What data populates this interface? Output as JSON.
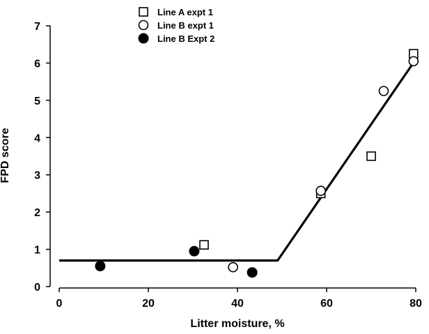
{
  "chart_data": {
    "type": "scatter",
    "xlabel": "Litter moisture, %",
    "ylabel": "FPD score",
    "xlim": [
      0,
      80
    ],
    "ylim": [
      0,
      7
    ],
    "xticks": [
      0,
      20,
      40,
      60,
      80
    ],
    "yticks": [
      0,
      1,
      2,
      3,
      4,
      5,
      6,
      7
    ],
    "xtick_labels": [
      "0",
      "20",
      "40",
      "60",
      "80"
    ],
    "ytick_labels": [
      "0",
      "1",
      "2",
      "3",
      "4",
      "5",
      "6",
      "7"
    ],
    "grid": false,
    "legend_position": "top-left",
    "series": [
      {
        "name": "Line A expt 1",
        "marker": "open-square",
        "color": "#000000",
        "points": [
          {
            "x": 32.5,
            "y": 1.12
          },
          {
            "x": 58.7,
            "y": 2.5
          },
          {
            "x": 70.0,
            "y": 3.5
          },
          {
            "x": 79.5,
            "y": 6.25
          }
        ]
      },
      {
        "name": "Line B expt 1",
        "marker": "open-circle",
        "color": "#000000",
        "points": [
          {
            "x": 39.0,
            "y": 0.52
          },
          {
            "x": 58.7,
            "y": 2.57
          },
          {
            "x": 72.8,
            "y": 5.25
          },
          {
            "x": 79.5,
            "y": 6.05
          }
        ]
      },
      {
        "name": "Line B Expt 2",
        "marker": "filled-circle",
        "color": "#000000",
        "points": [
          {
            "x": 9.2,
            "y": 0.55
          },
          {
            "x": 30.3,
            "y": 0.95
          },
          {
            "x": 43.3,
            "y": 0.38
          }
        ]
      }
    ],
    "fit_line": [
      {
        "x": 0,
        "y": 0.7
      },
      {
        "x": 49,
        "y": 0.7
      },
      {
        "x": 80,
        "y": 6.1
      }
    ]
  }
}
